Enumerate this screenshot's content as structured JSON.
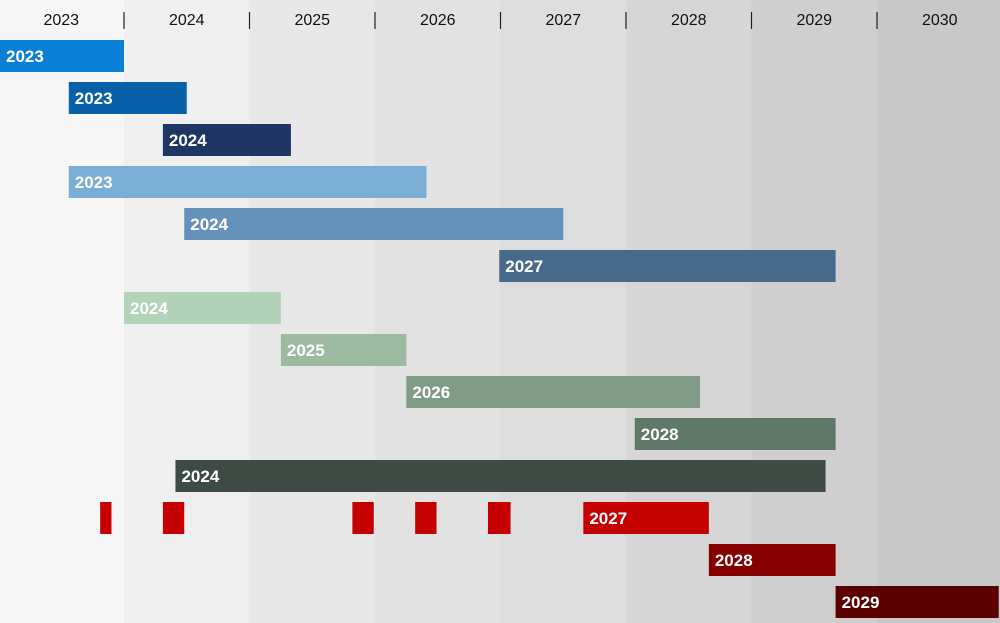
{
  "chart_data": {
    "type": "bar",
    "orientation": "horizontal-timeline",
    "xlim": [
      2023.0,
      2030.97
    ],
    "axis_years": [
      "2023",
      "2024",
      "2025",
      "2026",
      "2027",
      "2028",
      "2029",
      "2030"
    ],
    "grid": "alternating-bands",
    "band_colors": [
      "#f6f6f6",
      "#efefef",
      "#e8e8e8",
      "#e2e2e2",
      "#dddddd",
      "#d6d6d6",
      "#cfcfcf",
      "#c8c8c8"
    ],
    "rows": [
      {
        "segments": [
          {
            "start": 2023.0,
            "end": 2024.0,
            "label": "2023"
          }
        ],
        "color": "#0a7fd6"
      },
      {
        "segments": [
          {
            "start": 2023.56,
            "end": 2024.5,
            "label": "2023"
          }
        ],
        "color": "#0860a8"
      },
      {
        "segments": [
          {
            "start": 2024.31,
            "end": 2025.33,
            "label": "2024"
          }
        ],
        "color": "#1e3664"
      },
      {
        "segments": [
          {
            "start": 2023.56,
            "end": 2026.41,
            "label": "2023"
          }
        ],
        "color": "#7aaed5"
      },
      {
        "segments": [
          {
            "start": 2024.48,
            "end": 2027.5,
            "label": "2024"
          }
        ],
        "color": "#6592ba"
      },
      {
        "segments": [
          {
            "start": 2026.99,
            "end": 2029.67,
            "label": "2027"
          }
        ],
        "color": "#476a8b"
      },
      {
        "segments": [
          {
            "start": 2024.0,
            "end": 2025.25,
            "label": "2024"
          }
        ],
        "color": "#b1d4b9"
      },
      {
        "segments": [
          {
            "start": 2025.25,
            "end": 2026.25,
            "label": "2025"
          }
        ],
        "color": "#9cba9f"
      },
      {
        "segments": [
          {
            "start": 2026.25,
            "end": 2028.59,
            "label": "2026"
          }
        ],
        "color": "#7f9b86"
      },
      {
        "segments": [
          {
            "start": 2028.07,
            "end": 2029.67,
            "label": "2028"
          }
        ],
        "color": "#5f7868"
      },
      {
        "segments": [
          {
            "start": 2024.41,
            "end": 2029.59,
            "label": "2024"
          }
        ],
        "color": "#3e4a44"
      },
      {
        "segments": [
          {
            "start": 2023.81,
            "end": 2023.9,
            "label": ""
          },
          {
            "start": 2024.31,
            "end": 2024.48,
            "label": ""
          },
          {
            "start": 2025.82,
            "end": 2025.99,
            "label": ""
          },
          {
            "start": 2026.32,
            "end": 2026.49,
            "label": ""
          },
          {
            "start": 2026.9,
            "end": 2027.08,
            "label": ""
          },
          {
            "start": 2027.66,
            "end": 2028.66,
            "label": "2027"
          }
        ],
        "color": "#c40000"
      },
      {
        "segments": [
          {
            "start": 2028.66,
            "end": 2029.67,
            "label": "2028"
          }
        ],
        "color": "#860000"
      },
      {
        "segments": [
          {
            "start": 2029.67,
            "end": 2030.97,
            "label": "2029"
          }
        ],
        "color": "#5a0000"
      }
    ]
  }
}
